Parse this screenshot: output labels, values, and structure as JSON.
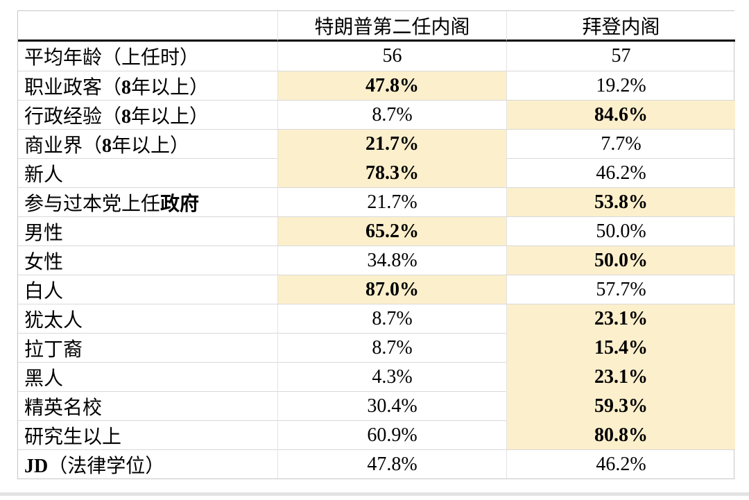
{
  "table": {
    "columns": [
      "",
      "特朗普第二任内阁",
      "拜登内阁"
    ],
    "highlight_color": "#fcefcc",
    "rows": [
      {
        "label": [
          {
            "t": "平均年龄（上任时）",
            "b": false
          }
        ],
        "trump": {
          "v": "56",
          "hl": false
        },
        "biden": {
          "v": "57",
          "hl": false
        }
      },
      {
        "label": [
          {
            "t": "职业政客（",
            "b": false
          },
          {
            "t": "8",
            "b": true
          },
          {
            "t": "年以上）",
            "b": false
          }
        ],
        "trump": {
          "v": "47.8%",
          "hl": true
        },
        "biden": {
          "v": "19.2%",
          "hl": false
        }
      },
      {
        "label": [
          {
            "t": "行政经验（",
            "b": false
          },
          {
            "t": "8",
            "b": true
          },
          {
            "t": "年以上）",
            "b": false
          }
        ],
        "trump": {
          "v": "8.7%",
          "hl": false
        },
        "biden": {
          "v": "84.6%",
          "hl": true
        }
      },
      {
        "label": [
          {
            "t": "商业界（",
            "b": false
          },
          {
            "t": "8",
            "b": true
          },
          {
            "t": "年以上）",
            "b": false
          }
        ],
        "trump": {
          "v": "21.7%",
          "hl": true
        },
        "biden": {
          "v": "7.7%",
          "hl": false
        }
      },
      {
        "label": [
          {
            "t": "新人",
            "b": false
          }
        ],
        "trump": {
          "v": "78.3%",
          "hl": true
        },
        "biden": {
          "v": "46.2%",
          "hl": false
        }
      },
      {
        "label": [
          {
            "t": "参与过本党上任",
            "b": false
          },
          {
            "t": "政府",
            "b": true
          }
        ],
        "trump": {
          "v": "21.7%",
          "hl": false
        },
        "biden": {
          "v": "53.8%",
          "hl": true
        }
      },
      {
        "label": [
          {
            "t": "男性",
            "b": false
          }
        ],
        "trump": {
          "v": "65.2%",
          "hl": true
        },
        "biden": {
          "v": "50.0%",
          "hl": false
        }
      },
      {
        "label": [
          {
            "t": "女性",
            "b": false
          }
        ],
        "trump": {
          "v": "34.8%",
          "hl": false
        },
        "biden": {
          "v": "50.0%",
          "hl": true
        }
      },
      {
        "label": [
          {
            "t": "白人",
            "b": false
          }
        ],
        "trump": {
          "v": "87.0%",
          "hl": true
        },
        "biden": {
          "v": "57.7%",
          "hl": false
        }
      },
      {
        "label": [
          {
            "t": "犹太人",
            "b": false
          }
        ],
        "trump": {
          "v": "8.7%",
          "hl": false
        },
        "biden": {
          "v": "23.1%",
          "hl": true
        }
      },
      {
        "label": [
          {
            "t": "拉丁裔",
            "b": false
          }
        ],
        "trump": {
          "v": "8.7%",
          "hl": false
        },
        "biden": {
          "v": "15.4%",
          "hl": true
        }
      },
      {
        "label": [
          {
            "t": "黑人",
            "b": false
          }
        ],
        "trump": {
          "v": "4.3%",
          "hl": false
        },
        "biden": {
          "v": "23.1%",
          "hl": true
        }
      },
      {
        "label": [
          {
            "t": "精英名校",
            "b": false
          }
        ],
        "trump": {
          "v": "30.4%",
          "hl": false
        },
        "biden": {
          "v": "59.3%",
          "hl": true
        }
      },
      {
        "label": [
          {
            "t": "研究生以上",
            "b": false
          }
        ],
        "trump": {
          "v": "60.9%",
          "hl": false
        },
        "biden": {
          "v": "80.8%",
          "hl": true
        }
      },
      {
        "label": [
          {
            "t": "JD",
            "b": true
          },
          {
            "t": "（法律学位）",
            "b": false
          }
        ],
        "trump": {
          "v": "47.8%",
          "hl": false
        },
        "biden": {
          "v": "46.2%",
          "hl": false
        }
      }
    ]
  }
}
